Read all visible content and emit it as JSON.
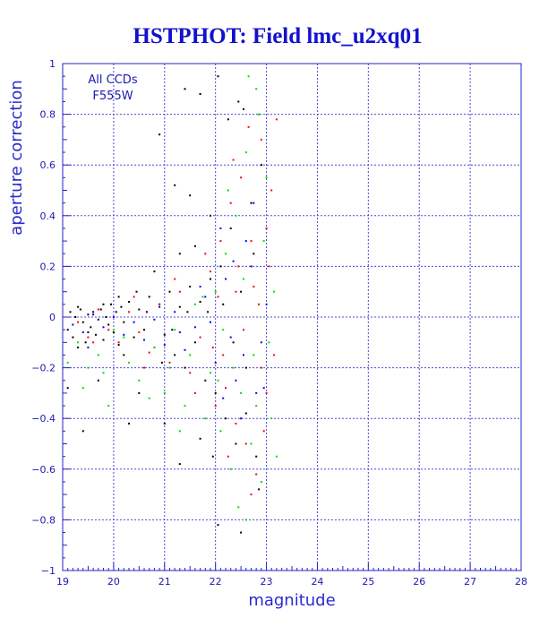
{
  "chart_data": {
    "type": "scatter",
    "title": "HSTPHOT: Field lmc_u2xq01",
    "xlabel": "magnitude",
    "ylabel": "aperture correction",
    "xlim": [
      19,
      28
    ],
    "ylim": [
      -1,
      1
    ],
    "x_ticks": [
      19,
      20,
      21,
      22,
      23,
      24,
      25,
      26,
      27,
      28
    ],
    "y_ticks": [
      -1,
      -0.8,
      -0.6,
      -0.4,
      -0.2,
      0,
      0.2,
      0.4,
      0.6,
      0.8,
      1
    ],
    "x_tick_labels": [
      "19",
      "20",
      "21",
      "22",
      "23",
      "24",
      "25",
      "26",
      "27",
      "28"
    ],
    "y_tick_labels": [
      "−1",
      "−0.8",
      "−0.6",
      "−0.4",
      "−0.2",
      "0",
      "0.2",
      "0.4",
      "0.6",
      "0.8",
      "1"
    ],
    "grid": true,
    "annotations": [
      "All CCDs",
      "F555W"
    ],
    "colors": {
      "frame": "#2323c8",
      "grid": "#4a4ad8",
      "title": "#1212cc",
      "points": [
        "#000000",
        "#ff0000",
        "#00dd00",
        "#0000ff"
      ]
    },
    "series": [
      {
        "color": "#000000",
        "points": [
          [
            19.1,
            -0.05
          ],
          [
            19.15,
            0.02
          ],
          [
            19.2,
            -0.08
          ],
          [
            19.25,
            0.0
          ],
          [
            19.3,
            -0.12
          ],
          [
            19.35,
            0.03
          ],
          [
            19.4,
            -0.02
          ],
          [
            19.45,
            -0.1
          ],
          [
            19.5,
            0.01
          ],
          [
            19.55,
            -0.04
          ],
          [
            19.6,
            0.02
          ],
          [
            19.65,
            -0.07
          ],
          [
            19.7,
            -0.01
          ],
          [
            19.75,
            0.03
          ],
          [
            19.8,
            -0.09
          ],
          [
            19.85,
            0.0
          ],
          [
            19.9,
            -0.03
          ],
          [
            19.95,
            0.05
          ],
          [
            20.0,
            -0.06
          ],
          [
            20.05,
            0.02
          ],
          [
            20.1,
            -0.11
          ],
          [
            20.15,
            0.04
          ],
          [
            20.2,
            -0.02
          ],
          [
            20.3,
            0.06
          ],
          [
            20.4,
            -0.08
          ],
          [
            20.5,
            0.03
          ],
          [
            20.6,
            -0.05
          ],
          [
            20.7,
            0.08
          ],
          [
            20.8,
            -0.12
          ],
          [
            20.9,
            0.05
          ],
          [
            21.0,
            -0.07
          ],
          [
            21.1,
            0.1
          ],
          [
            21.2,
            -0.15
          ],
          [
            21.3,
            0.04
          ],
          [
            21.4,
            -0.2
          ],
          [
            21.5,
            0.12
          ],
          [
            21.6,
            -0.1
          ],
          [
            21.7,
            0.06
          ],
          [
            21.8,
            -0.25
          ],
          [
            21.9,
            0.15
          ],
          [
            22.0,
            -0.3
          ],
          [
            22.1,
            0.2
          ],
          [
            22.2,
            -0.4
          ],
          [
            22.3,
            0.35
          ],
          [
            22.4,
            -0.5
          ],
          [
            22.5,
            0.1
          ],
          [
            22.6,
            -0.2
          ],
          [
            22.7,
            0.45
          ],
          [
            22.8,
            -0.55
          ],
          [
            22.9,
            0.6
          ],
          [
            21.4,
            0.9
          ],
          [
            21.7,
            0.88
          ],
          [
            20.9,
            0.72
          ],
          [
            21.2,
            0.52
          ],
          [
            21.5,
            0.48
          ],
          [
            22.05,
            0.95
          ],
          [
            22.25,
            0.78
          ],
          [
            22.55,
            0.82
          ],
          [
            22.45,
            0.85
          ],
          [
            19.1,
            -0.28
          ],
          [
            19.4,
            -0.45
          ],
          [
            20.3,
            -0.42
          ],
          [
            20.5,
            -0.3
          ],
          [
            21.3,
            -0.58
          ],
          [
            21.7,
            -0.48
          ],
          [
            22.05,
            -0.82
          ],
          [
            22.5,
            -0.85
          ],
          [
            22.85,
            -0.68
          ],
          [
            21.95,
            -0.55
          ],
          [
            22.6,
            -0.38
          ],
          [
            21.0,
            -0.42
          ],
          [
            20.2,
            -0.15
          ],
          [
            19.7,
            -0.25
          ],
          [
            20.8,
            0.18
          ],
          [
            21.3,
            0.25
          ],
          [
            21.6,
            0.28
          ],
          [
            21.9,
            0.4
          ],
          [
            22.15,
            0.05
          ],
          [
            22.35,
            -0.1
          ],
          [
            22.75,
            0.25
          ],
          [
            19.3,
            0.04
          ],
          [
            19.5,
            -0.06
          ],
          [
            19.8,
            0.05
          ],
          [
            20.1,
            0.08
          ],
          [
            20.45,
            0.1
          ],
          [
            20.65,
            0.02
          ],
          [
            20.95,
            -0.18
          ],
          [
            21.15,
            -0.05
          ],
          [
            21.45,
            0.02
          ],
          [
            21.85,
            0.02
          ]
        ]
      },
      {
        "color": "#ff0000",
        "points": [
          [
            19.3,
            -0.02
          ],
          [
            19.5,
            -0.08
          ],
          [
            19.7,
            0.03
          ],
          [
            19.9,
            -0.05
          ],
          [
            20.1,
            -0.1
          ],
          [
            20.3,
            0.02
          ],
          [
            20.5,
            -0.06
          ],
          [
            20.7,
            -0.14
          ],
          [
            20.9,
            0.05
          ],
          [
            21.1,
            -0.18
          ],
          [
            21.3,
            0.1
          ],
          [
            21.5,
            -0.22
          ],
          [
            21.7,
            -0.08
          ],
          [
            21.9,
            0.18
          ],
          [
            22.0,
            -0.35
          ],
          [
            22.1,
            0.3
          ],
          [
            22.2,
            -0.28
          ],
          [
            22.3,
            0.45
          ],
          [
            22.4,
            -0.42
          ],
          [
            22.5,
            0.55
          ],
          [
            22.6,
            -0.5
          ],
          [
            22.7,
            0.3
          ],
          [
            22.8,
            -0.62
          ],
          [
            22.9,
            0.7
          ],
          [
            23.0,
            -0.3
          ],
          [
            23.1,
            0.5
          ],
          [
            23.2,
            0.78
          ],
          [
            22.35,
            0.62
          ],
          [
            22.15,
            -0.15
          ],
          [
            22.55,
            -0.05
          ],
          [
            22.75,
            0.12
          ],
          [
            22.95,
            -0.45
          ],
          [
            23.05,
            0.2
          ],
          [
            21.8,
            0.25
          ],
          [
            21.6,
            -0.3
          ],
          [
            21.2,
            0.15
          ],
          [
            20.6,
            -0.2
          ],
          [
            20.4,
            0.08
          ],
          [
            19.6,
            -0.1
          ],
          [
            22.45,
            0.2
          ],
          [
            22.65,
            0.75
          ],
          [
            22.85,
            0.05
          ],
          [
            23.15,
            -0.15
          ],
          [
            22.25,
            -0.55
          ],
          [
            22.05,
            0.08
          ],
          [
            21.95,
            -0.12
          ],
          [
            22.7,
            -0.7
          ],
          [
            23.0,
            0.35
          ],
          [
            22.4,
            0.1
          ],
          [
            22.9,
            -0.2
          ]
        ]
      },
      {
        "color": "#00dd00",
        "points": [
          [
            19.1,
            -0.18
          ],
          [
            19.3,
            -0.1
          ],
          [
            19.5,
            -0.2
          ],
          [
            19.7,
            -0.15
          ],
          [
            19.9,
            -0.35
          ],
          [
            20.2,
            -0.08
          ],
          [
            20.5,
            -0.25
          ],
          [
            20.8,
            -0.12
          ],
          [
            21.0,
            -0.3
          ],
          [
            21.2,
            -0.05
          ],
          [
            21.4,
            -0.35
          ],
          [
            21.6,
            0.05
          ],
          [
            21.8,
            -0.4
          ],
          [
            22.0,
            0.1
          ],
          [
            22.1,
            -0.45
          ],
          [
            22.2,
            0.25
          ],
          [
            22.3,
            -0.6
          ],
          [
            22.4,
            0.4
          ],
          [
            22.5,
            -0.3
          ],
          [
            22.6,
            0.65
          ],
          [
            22.7,
            -0.5
          ],
          [
            22.8,
            0.9
          ],
          [
            22.9,
            -0.65
          ],
          [
            23.0,
            0.55
          ],
          [
            23.1,
            -0.4
          ],
          [
            23.2,
            -0.55
          ],
          [
            22.85,
            0.8
          ],
          [
            22.65,
            0.95
          ],
          [
            22.35,
            -0.2
          ],
          [
            22.55,
            0.15
          ],
          [
            22.75,
            -0.15
          ],
          [
            22.95,
            0.3
          ],
          [
            23.05,
            -0.1
          ],
          [
            21.9,
            -0.22
          ],
          [
            21.5,
            -0.15
          ],
          [
            21.1,
            -0.2
          ],
          [
            20.7,
            -0.32
          ],
          [
            20.3,
            -0.18
          ],
          [
            19.4,
            -0.28
          ],
          [
            22.15,
            -0.05
          ],
          [
            22.45,
            -0.75
          ],
          [
            22.25,
            0.5
          ],
          [
            22.05,
            -0.25
          ],
          [
            21.75,
            0.08
          ],
          [
            23.15,
            0.1
          ],
          [
            22.6,
            -0.8
          ],
          [
            22.8,
            -0.35
          ],
          [
            20.0,
            -0.05
          ],
          [
            19.8,
            -0.22
          ],
          [
            21.3,
            -0.45
          ]
        ]
      },
      {
        "color": "#0000ff",
        "points": [
          [
            19.2,
            -0.03
          ],
          [
            19.4,
            -0.06
          ],
          [
            19.6,
            0.01
          ],
          [
            19.8,
            -0.04
          ],
          [
            20.0,
            0.0
          ],
          [
            20.2,
            -0.07
          ],
          [
            20.4,
            -0.02
          ],
          [
            20.6,
            -0.09
          ],
          [
            20.8,
            -0.01
          ],
          [
            21.0,
            -0.11
          ],
          [
            21.2,
            0.02
          ],
          [
            21.4,
            -0.13
          ],
          [
            21.6,
            -0.04
          ],
          [
            21.8,
            0.08
          ],
          [
            22.0,
            -0.18
          ],
          [
            22.2,
            0.15
          ],
          [
            22.4,
            -0.25
          ],
          [
            22.6,
            0.3
          ],
          [
            22.8,
            -0.3
          ],
          [
            23.0,
            0.05
          ],
          [
            22.1,
            0.35
          ],
          [
            22.3,
            -0.08
          ],
          [
            22.5,
            -0.4
          ],
          [
            22.7,
            0.2
          ],
          [
            22.9,
            -0.1
          ],
          [
            21.9,
            -0.02
          ],
          [
            21.7,
            0.12
          ],
          [
            21.3,
            -0.06
          ],
          [
            20.9,
            0.04
          ],
          [
            19.5,
            -0.12
          ],
          [
            22.35,
            0.22
          ],
          [
            22.55,
            -0.15
          ],
          [
            22.75,
            0.45
          ],
          [
            22.95,
            -0.28
          ],
          [
            22.15,
            -0.32
          ]
        ]
      }
    ]
  }
}
